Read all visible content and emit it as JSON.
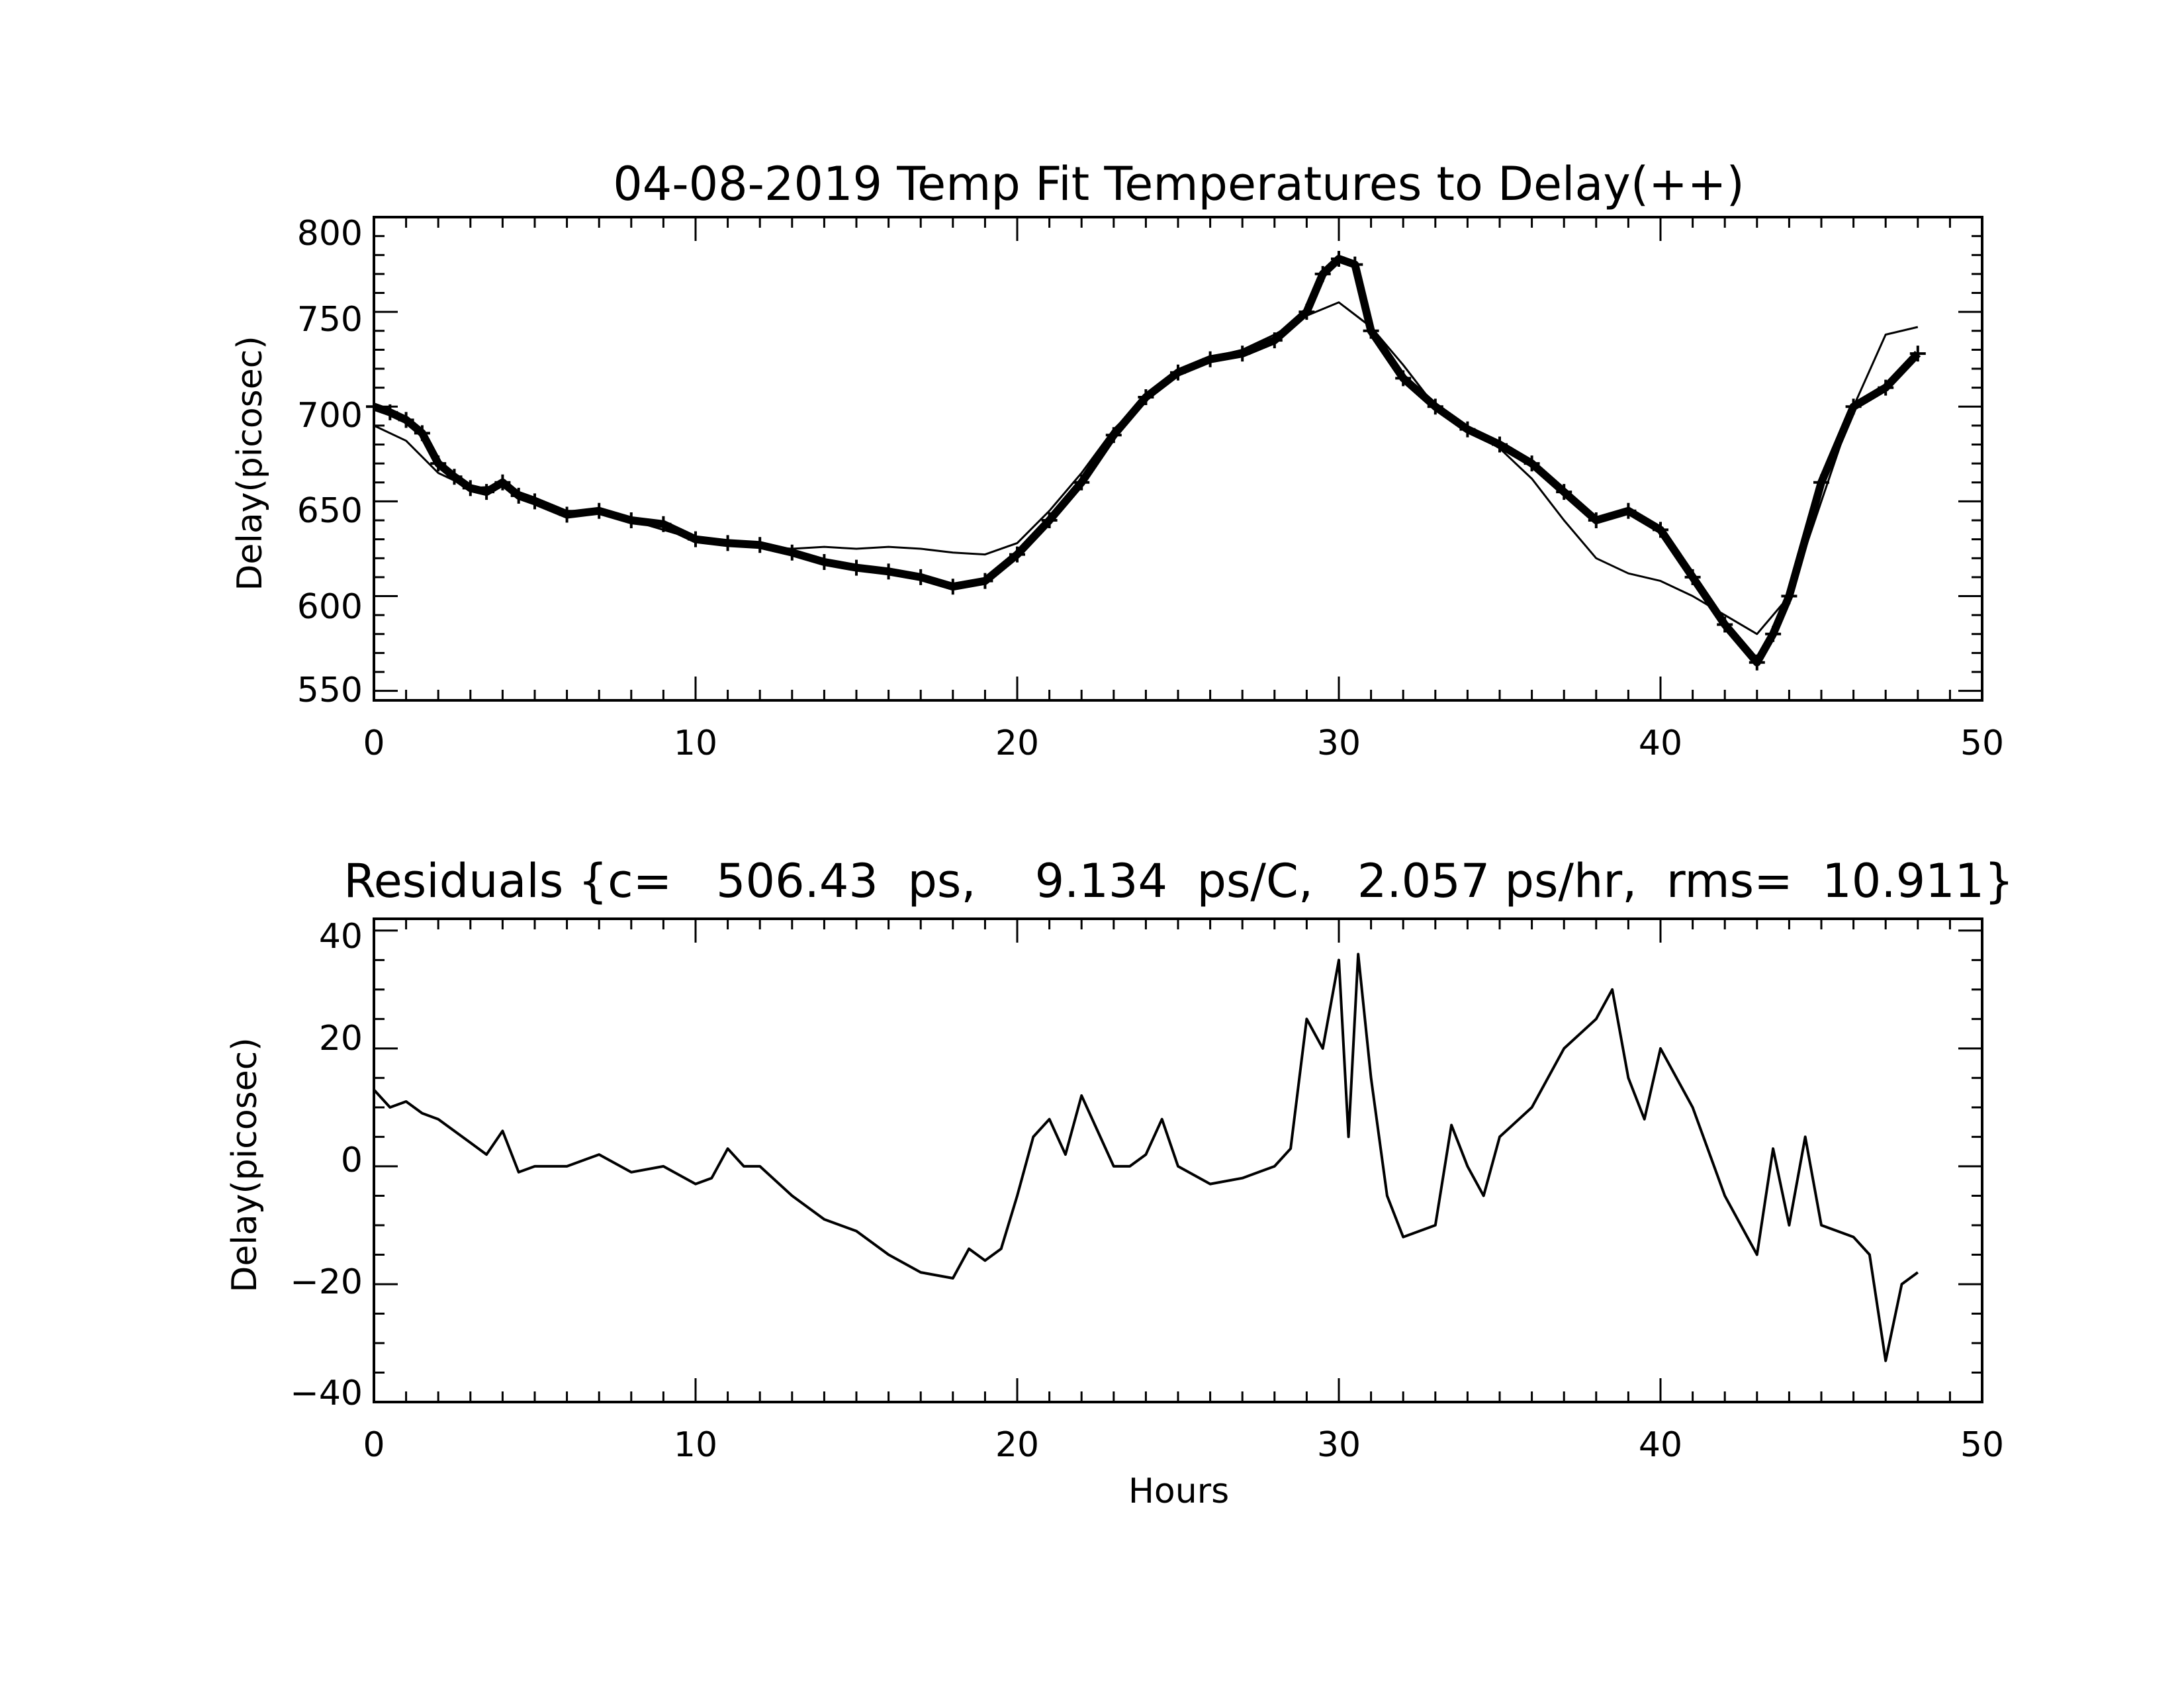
{
  "chart_data": [
    {
      "type": "line",
      "title": "04-08-2019 Temp Fit Temperatures to Delay(++)",
      "xlabel": "",
      "ylabel": "Delay(picosec)",
      "xlim": [
        0,
        50
      ],
      "ylim": [
        545,
        800
      ],
      "x_ticks": [
        "0",
        "10",
        "20",
        "30",
        "40",
        "50"
      ],
      "y_ticks": [
        "550",
        "600",
        "650",
        "700",
        "750",
        "800"
      ],
      "grid": false,
      "legend": "none",
      "series": [
        {
          "marker": "plus",
          "x": [
            0,
            0.5,
            1,
            1.5,
            2,
            2.5,
            3,
            3.5,
            4,
            4.5,
            5,
            6,
            7,
            8,
            9,
            10,
            11,
            12,
            13,
            14,
            15,
            16,
            17,
            18,
            19,
            20,
            21,
            22,
            23,
            24,
            25,
            26,
            27,
            28,
            29,
            29.5,
            30,
            30.5,
            31,
            32,
            33,
            34,
            35,
            36,
            37,
            38,
            39,
            40,
            41,
            42,
            43,
            43.5,
            44,
            45,
            46,
            47,
            48
          ],
          "y": [
            700,
            697,
            693,
            686,
            670,
            663,
            657,
            655,
            660,
            653,
            650,
            643,
            645,
            640,
            638,
            630,
            628,
            627,
            623,
            618,
            615,
            613,
            610,
            605,
            608,
            622,
            640,
            660,
            685,
            705,
            718,
            725,
            728,
            735,
            750,
            770,
            778,
            775,
            740,
            715,
            700,
            688,
            680,
            670,
            655,
            640,
            645,
            635,
            610,
            585,
            565,
            580,
            600,
            660,
            700,
            710,
            728
          ]
        },
        {
          "marker": "none",
          "x": [
            0,
            1,
            2,
            3,
            4,
            5,
            6,
            7,
            8,
            9,
            10,
            11,
            12,
            13,
            14,
            15,
            16,
            17,
            18,
            19,
            20,
            21,
            22,
            23,
            24,
            25,
            26,
            27,
            28,
            29,
            30,
            31,
            32,
            33,
            34,
            35,
            36,
            37,
            38,
            39,
            40,
            41,
            42,
            43,
            44,
            45,
            46,
            47,
            48
          ],
          "y": [
            690,
            682,
            665,
            657,
            658,
            652,
            645,
            645,
            640,
            635,
            630,
            628,
            626,
            625,
            626,
            625,
            626,
            625,
            623,
            622,
            628,
            645,
            665,
            688,
            705,
            718,
            726,
            730,
            738,
            748,
            755,
            742,
            722,
            700,
            688,
            678,
            662,
            640,
            620,
            612,
            608,
            600,
            590,
            580,
            600,
            650,
            700,
            738,
            742
          ]
        }
      ]
    },
    {
      "type": "line",
      "title": "Residuals {c=   506.43  ps,    9.134  ps/C,   2.057 ps/hr,  rms=  10.911}",
      "xlabel": "Hours",
      "ylabel": "Delay(picosec)",
      "xlim": [
        0,
        50
      ],
      "ylim": [
        -40,
        42
      ],
      "x_ticks": [
        "0",
        "10",
        "20",
        "30",
        "40",
        "50"
      ],
      "y_ticks": [
        "−40",
        "−20",
        "0",
        "20",
        "40"
      ],
      "grid": false,
      "legend": "none",
      "series": [
        {
          "marker": "none",
          "x": [
            0,
            0.5,
            1,
            1.5,
            2,
            3,
            3.5,
            4,
            4.5,
            5,
            6,
            7,
            8,
            9,
            10,
            10.5,
            11,
            11.5,
            12,
            13,
            14,
            15,
            16,
            17,
            18,
            18.5,
            19,
            19.5,
            20,
            20.5,
            21,
            21.5,
            22,
            22.5,
            23,
            23.5,
            24,
            24.5,
            25,
            26,
            27,
            28,
            28.5,
            29,
            29.5,
            30,
            30.3,
            30.6,
            31,
            31.5,
            32,
            33,
            33.5,
            34,
            34.5,
            35,
            36,
            37,
            38,
            38.5,
            39,
            39.5,
            40,
            41,
            42,
            43,
            43.5,
            44,
            44.5,
            45,
            46,
            46.5,
            47,
            47.5,
            48
          ],
          "y": [
            13,
            10,
            11,
            9,
            8,
            4,
            2,
            6,
            -1,
            0,
            0,
            2,
            -1,
            0,
            -3,
            -2,
            3,
            0,
            0,
            -5,
            -9,
            -11,
            -15,
            -18,
            -19,
            -14,
            -16,
            -14,
            -5,
            5,
            8,
            2,
            12,
            6,
            0,
            0,
            2,
            8,
            0,
            -3,
            -2,
            0,
            3,
            25,
            20,
            35,
            5,
            36,
            15,
            -5,
            -12,
            -10,
            7,
            0,
            -5,
            5,
            10,
            20,
            25,
            30,
            15,
            8,
            20,
            10,
            -5,
            -15,
            3,
            -10,
            5,
            -10,
            -12,
            -15,
            -33,
            -20,
            -18
          ]
        }
      ]
    }
  ]
}
